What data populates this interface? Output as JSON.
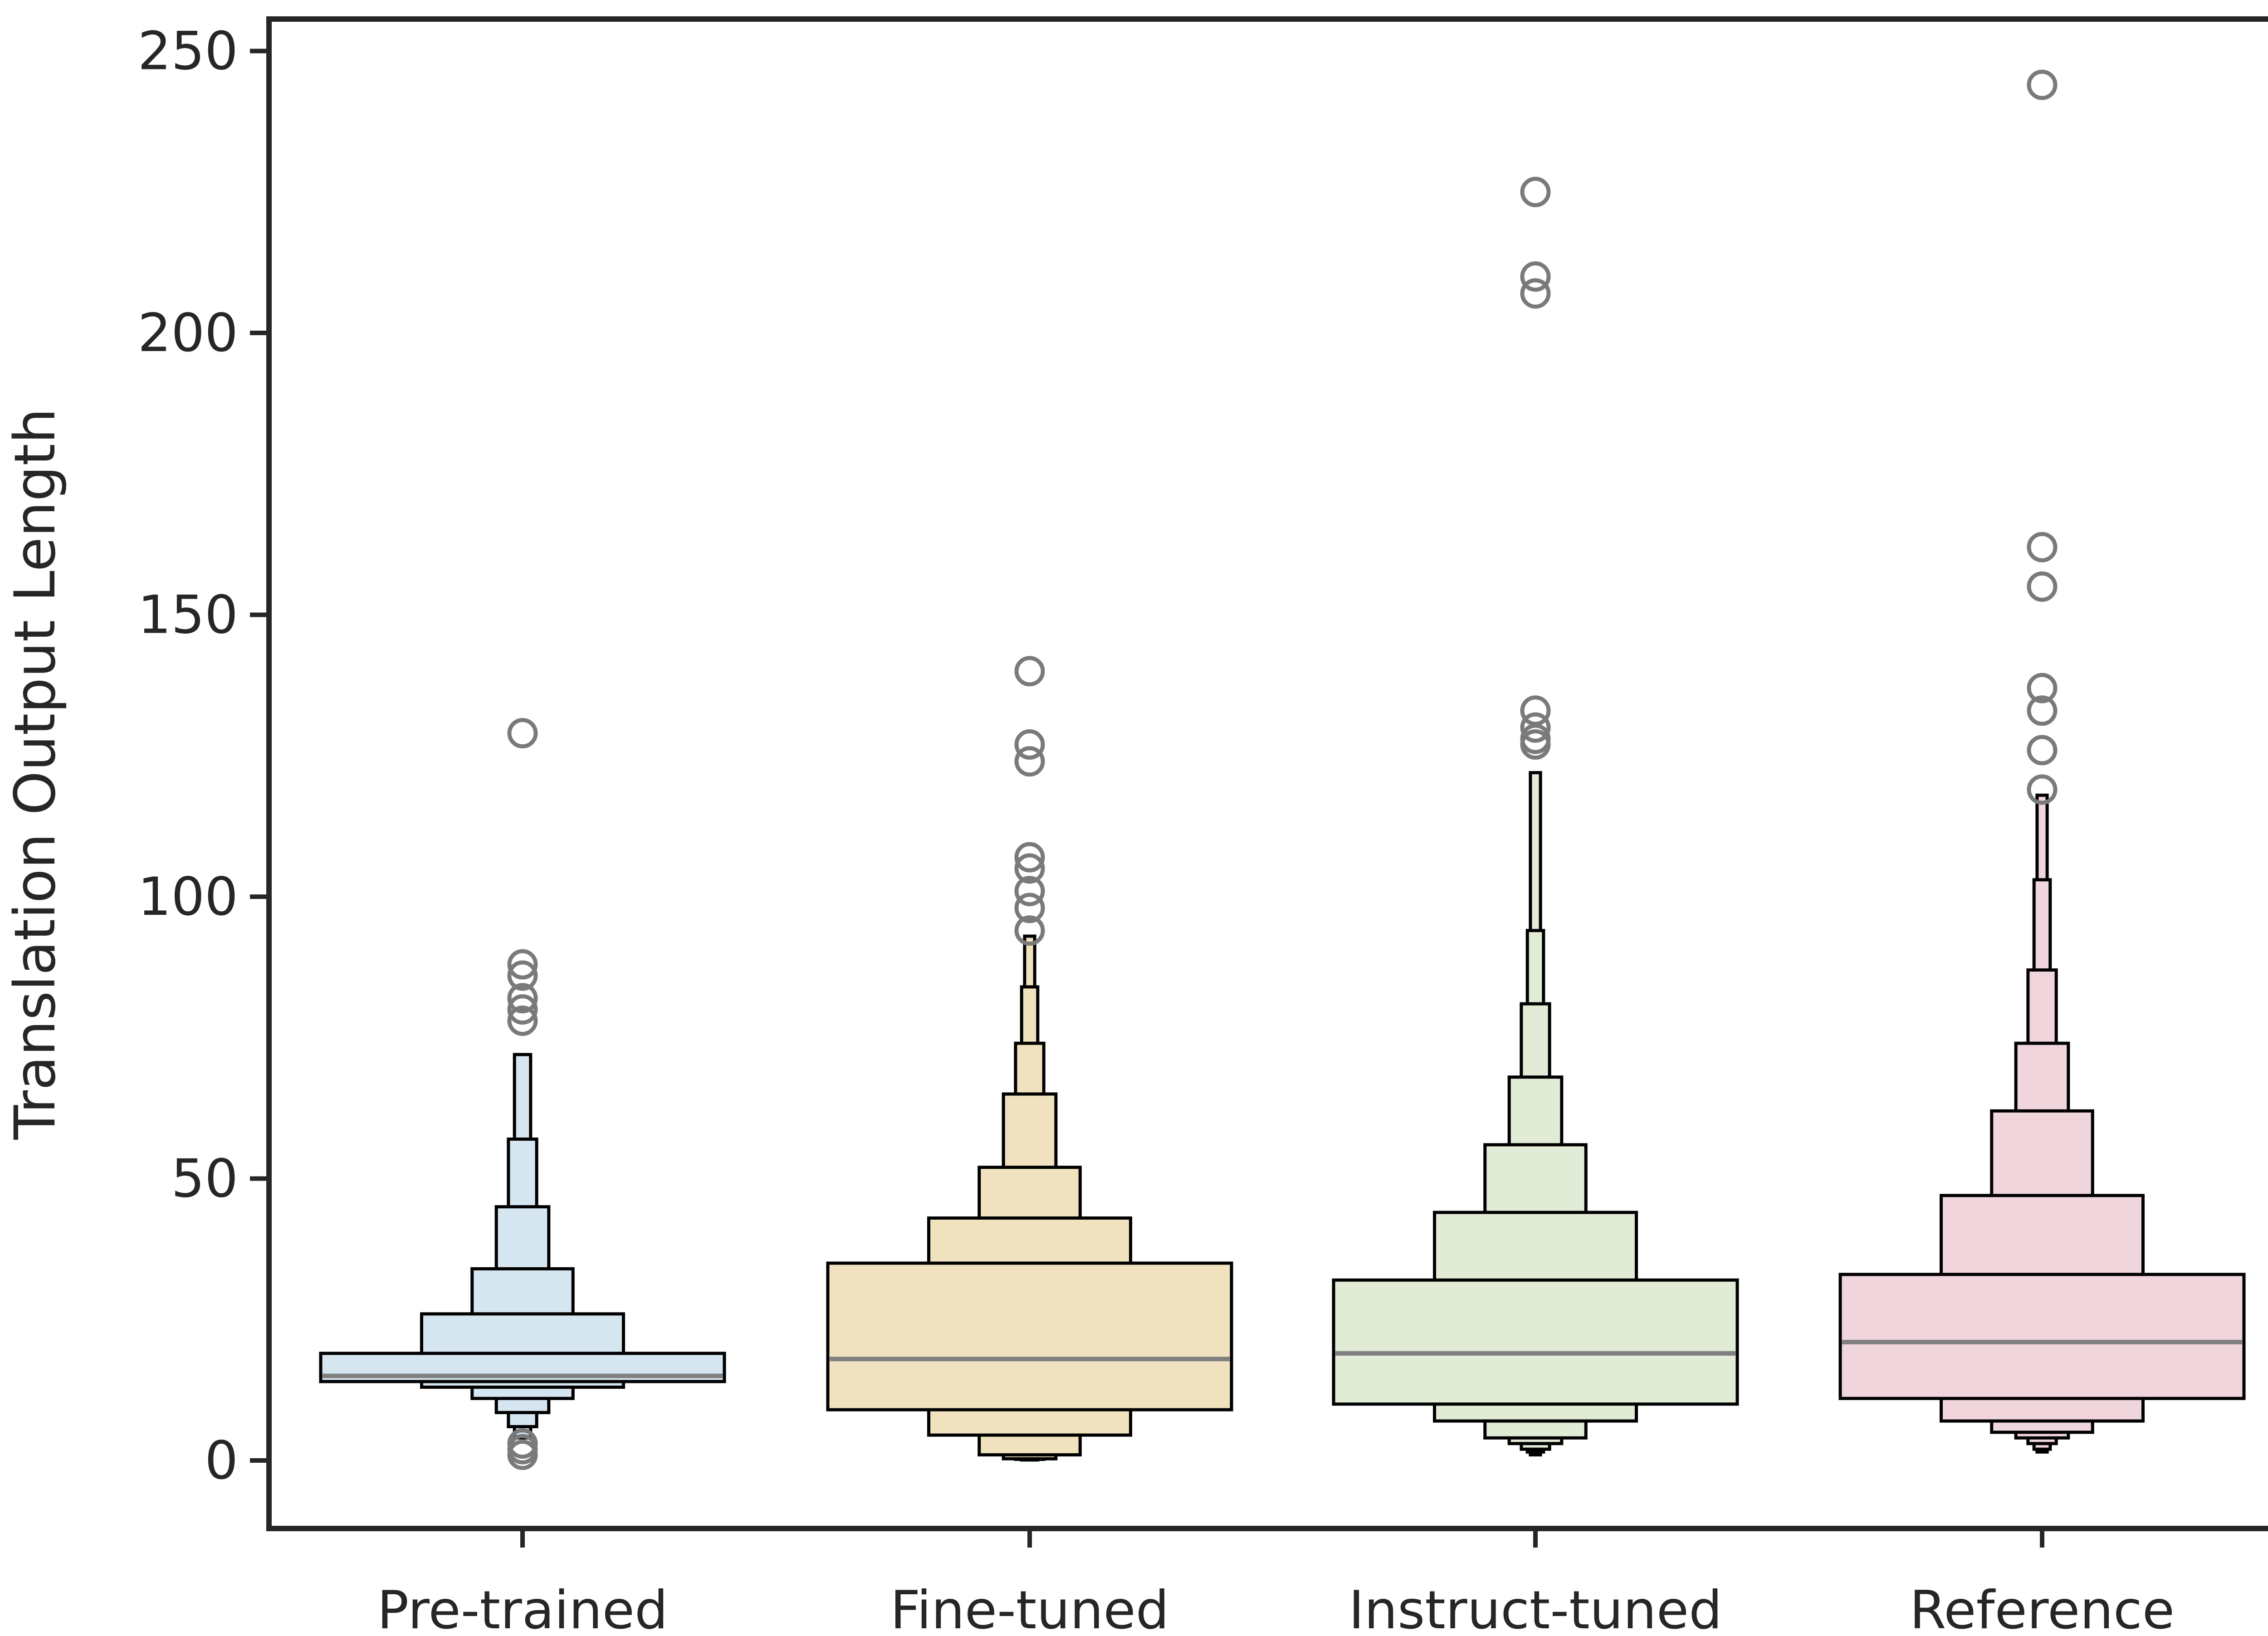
{
  "chart_data": {
    "type": "boxen",
    "title": "",
    "xlabel": "",
    "ylabel": "Translation Output Length",
    "ylim": [
      -12,
      262
    ],
    "yticks": [
      0,
      50,
      100,
      150,
      200,
      250
    ],
    "grid": false,
    "legend": "none",
    "categories": [
      "Pre-trained",
      "Fine-tuned",
      "Instruct-tuned",
      "Reference"
    ],
    "series": [
      {
        "category": "Pre-trained",
        "color": "#d6e6f1",
        "median": 15,
        "boxes": [
          {
            "low": 14,
            "high": 19
          },
          {
            "low": 13,
            "high": 26
          },
          {
            "low": 11,
            "high": 34
          },
          {
            "low": 8.5,
            "high": 45
          },
          {
            "low": 6,
            "high": 57
          },
          {
            "low": 4,
            "high": 72
          }
        ],
        "outliers": [
          129,
          88,
          86,
          82,
          80,
          78,
          3,
          2,
          1
        ]
      },
      {
        "category": "Fine-tuned",
        "color": "#f0e2bf",
        "median": 18,
        "boxes": [
          {
            "low": 9,
            "high": 35
          },
          {
            "low": 4.5,
            "high": 43
          },
          {
            "low": 1,
            "high": 52
          },
          {
            "low": 0.3,
            "high": 65
          },
          {
            "low": 0.2,
            "high": 74
          },
          {
            "low": 0.1,
            "high": 84
          },
          {
            "low": 0.1,
            "high": 93
          }
        ],
        "outliers": [
          140,
          127,
          124,
          107,
          105,
          101,
          98,
          94
        ]
      },
      {
        "category": "Instruct-tuned",
        "color": "#e2ebd6",
        "median": 19,
        "boxes": [
          {
            "low": 10,
            "high": 32
          },
          {
            "low": 7,
            "high": 44
          },
          {
            "low": 4,
            "high": 56
          },
          {
            "low": 3,
            "high": 68
          },
          {
            "low": 2,
            "high": 81
          },
          {
            "low": 1.5,
            "high": 94
          },
          {
            "low": 1,
            "high": 122
          }
        ],
        "outliers": [
          225,
          210,
          207,
          133,
          130,
          128,
          127
        ]
      },
      {
        "category": "Reference",
        "color": "#f0d5dc",
        "median": 21,
        "boxes": [
          {
            "low": 11,
            "high": 33
          },
          {
            "low": 7,
            "high": 47
          },
          {
            "low": 5,
            "high": 62
          },
          {
            "low": 4,
            "high": 74
          },
          {
            "low": 3,
            "high": 87
          },
          {
            "low": 2,
            "high": 103
          },
          {
            "low": 1.5,
            "high": 118
          }
        ],
        "outliers": [
          244,
          162,
          155,
          137,
          133,
          126,
          119
        ]
      }
    ]
  }
}
